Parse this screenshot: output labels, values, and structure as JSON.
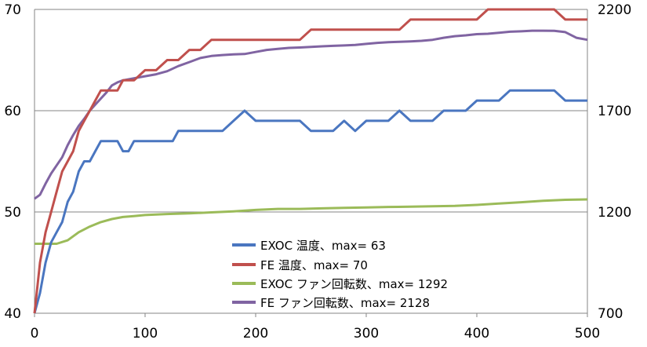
{
  "chart_data": {
    "type": "line",
    "x_ticks": [
      0,
      100,
      200,
      300,
      400,
      500
    ],
    "y_left_ticks": [
      40,
      50,
      60,
      70
    ],
    "y_right_ticks": [
      700,
      1200,
      1700,
      2200
    ],
    "xlim": [
      0,
      500
    ],
    "ylim_left": [
      40,
      70
    ],
    "ylim_right": [
      700,
      2200
    ],
    "grid": true,
    "legend_position": "bottom-center",
    "series": [
      {
        "name": "EXOC 温度、max= 63",
        "axis": "left",
        "color": "#4a76c0",
        "points": [
          [
            0,
            39
          ],
          [
            5,
            42
          ],
          [
            10,
            45
          ],
          [
            15,
            47
          ],
          [
            20,
            48
          ],
          [
            25,
            49
          ],
          [
            30,
            51
          ],
          [
            35,
            52
          ],
          [
            40,
            54
          ],
          [
            45,
            55
          ],
          [
            50,
            55
          ],
          [
            55,
            56
          ],
          [
            60,
            57
          ],
          [
            65,
            57
          ],
          [
            70,
            57
          ],
          [
            75,
            57
          ],
          [
            80,
            56
          ],
          [
            85,
            56
          ],
          [
            90,
            57
          ],
          [
            100,
            57
          ],
          [
            110,
            57
          ],
          [
            120,
            57
          ],
          [
            125,
            57
          ],
          [
            130,
            58
          ],
          [
            140,
            58
          ],
          [
            150,
            58
          ],
          [
            160,
            58
          ],
          [
            170,
            58
          ],
          [
            180,
            59
          ],
          [
            190,
            60
          ],
          [
            200,
            59
          ],
          [
            210,
            59
          ],
          [
            220,
            59
          ],
          [
            230,
            59
          ],
          [
            240,
            59
          ],
          [
            250,
            58
          ],
          [
            260,
            58
          ],
          [
            270,
            58
          ],
          [
            280,
            59
          ],
          [
            290,
            58
          ],
          [
            300,
            59
          ],
          [
            310,
            59
          ],
          [
            320,
            59
          ],
          [
            330,
            60
          ],
          [
            340,
            59
          ],
          [
            350,
            59
          ],
          [
            360,
            59
          ],
          [
            370,
            60
          ],
          [
            380,
            60
          ],
          [
            390,
            60
          ],
          [
            400,
            61
          ],
          [
            410,
            61
          ],
          [
            420,
            61
          ],
          [
            430,
            62
          ],
          [
            440,
            62
          ],
          [
            450,
            62
          ],
          [
            460,
            62
          ],
          [
            470,
            62
          ],
          [
            480,
            61
          ],
          [
            490,
            61
          ],
          [
            500,
            61
          ]
        ]
      },
      {
        "name": "FE 温度、max= 70",
        "axis": "left",
        "color": "#c0504d",
        "points": [
          [
            0,
            40
          ],
          [
            5,
            45
          ],
          [
            10,
            48
          ],
          [
            15,
            50
          ],
          [
            20,
            52
          ],
          [
            25,
            54
          ],
          [
            30,
            55
          ],
          [
            35,
            56
          ],
          [
            40,
            58
          ],
          [
            45,
            59
          ],
          [
            50,
            60
          ],
          [
            55,
            61
          ],
          [
            60,
            62
          ],
          [
            65,
            62
          ],
          [
            70,
            62
          ],
          [
            75,
            62
          ],
          [
            80,
            63
          ],
          [
            90,
            63
          ],
          [
            100,
            64
          ],
          [
            110,
            64
          ],
          [
            120,
            65
          ],
          [
            125,
            65
          ],
          [
            130,
            65
          ],
          [
            140,
            66
          ],
          [
            150,
            66
          ],
          [
            160,
            67
          ],
          [
            170,
            67
          ],
          [
            180,
            67
          ],
          [
            190,
            67
          ],
          [
            200,
            67
          ],
          [
            210,
            67
          ],
          [
            220,
            67
          ],
          [
            230,
            67
          ],
          [
            240,
            67
          ],
          [
            250,
            68
          ],
          [
            260,
            68
          ],
          [
            270,
            68
          ],
          [
            280,
            68
          ],
          [
            290,
            68
          ],
          [
            300,
            68
          ],
          [
            310,
            68
          ],
          [
            320,
            68
          ],
          [
            330,
            68
          ],
          [
            340,
            69
          ],
          [
            350,
            69
          ],
          [
            360,
            69
          ],
          [
            370,
            69
          ],
          [
            380,
            69
          ],
          [
            390,
            69
          ],
          [
            400,
            69
          ],
          [
            410,
            70
          ],
          [
            420,
            70
          ],
          [
            430,
            70
          ],
          [
            440,
            70
          ],
          [
            450,
            70
          ],
          [
            460,
            70
          ],
          [
            470,
            70
          ],
          [
            480,
            69
          ],
          [
            490,
            69
          ],
          [
            500,
            69
          ]
        ]
      },
      {
        "name": "EXOC ファン回転数、max= 1292",
        "axis": "right",
        "color": "#9bbb59",
        "points": [
          [
            0,
            1043
          ],
          [
            10,
            1043
          ],
          [
            20,
            1043
          ],
          [
            30,
            1060
          ],
          [
            40,
            1100
          ],
          [
            50,
            1128
          ],
          [
            60,
            1150
          ],
          [
            70,
            1165
          ],
          [
            80,
            1175
          ],
          [
            90,
            1180
          ],
          [
            100,
            1185
          ],
          [
            120,
            1190
          ],
          [
            140,
            1193
          ],
          [
            160,
            1198
          ],
          [
            180,
            1203
          ],
          [
            200,
            1210
          ],
          [
            220,
            1215
          ],
          [
            240,
            1215
          ],
          [
            260,
            1218
          ],
          [
            280,
            1220
          ],
          [
            300,
            1222
          ],
          [
            320,
            1225
          ],
          [
            340,
            1226
          ],
          [
            360,
            1228
          ],
          [
            380,
            1230
          ],
          [
            400,
            1235
          ],
          [
            420,
            1242
          ],
          [
            440,
            1248
          ],
          [
            460,
            1255
          ],
          [
            480,
            1260
          ],
          [
            500,
            1262
          ]
        ]
      },
      {
        "name": "FE ファン回転数、max= 2128",
        "axis": "right",
        "color": "#8064a2",
        "points": [
          [
            0,
            1265
          ],
          [
            5,
            1285
          ],
          [
            10,
            1340
          ],
          [
            15,
            1390
          ],
          [
            20,
            1430
          ],
          [
            25,
            1470
          ],
          [
            30,
            1530
          ],
          [
            35,
            1580
          ],
          [
            40,
            1625
          ],
          [
            45,
            1660
          ],
          [
            50,
            1700
          ],
          [
            55,
            1730
          ],
          [
            60,
            1760
          ],
          [
            65,
            1790
          ],
          [
            70,
            1825
          ],
          [
            75,
            1840
          ],
          [
            80,
            1850
          ],
          [
            90,
            1860
          ],
          [
            100,
            1870
          ],
          [
            110,
            1880
          ],
          [
            120,
            1895
          ],
          [
            130,
            1920
          ],
          [
            140,
            1940
          ],
          [
            150,
            1960
          ],
          [
            160,
            1970
          ],
          [
            170,
            1975
          ],
          [
            180,
            1978
          ],
          [
            190,
            1980
          ],
          [
            200,
            1990
          ],
          [
            210,
            2000
          ],
          [
            220,
            2005
          ],
          [
            230,
            2010
          ],
          [
            240,
            2012
          ],
          [
            250,
            2015
          ],
          [
            260,
            2018
          ],
          [
            270,
            2020
          ],
          [
            280,
            2022
          ],
          [
            290,
            2025
          ],
          [
            300,
            2030
          ],
          [
            310,
            2035
          ],
          [
            320,
            2038
          ],
          [
            330,
            2040
          ],
          [
            340,
            2042
          ],
          [
            350,
            2045
          ],
          [
            360,
            2050
          ],
          [
            370,
            2060
          ],
          [
            380,
            2068
          ],
          [
            390,
            2072
          ],
          [
            400,
            2078
          ],
          [
            410,
            2080
          ],
          [
            420,
            2085
          ],
          [
            430,
            2090
          ],
          [
            440,
            2092
          ],
          [
            450,
            2095
          ],
          [
            460,
            2095
          ],
          [
            470,
            2094
          ],
          [
            480,
            2088
          ],
          [
            490,
            2060
          ],
          [
            500,
            2050
          ]
        ]
      }
    ]
  }
}
